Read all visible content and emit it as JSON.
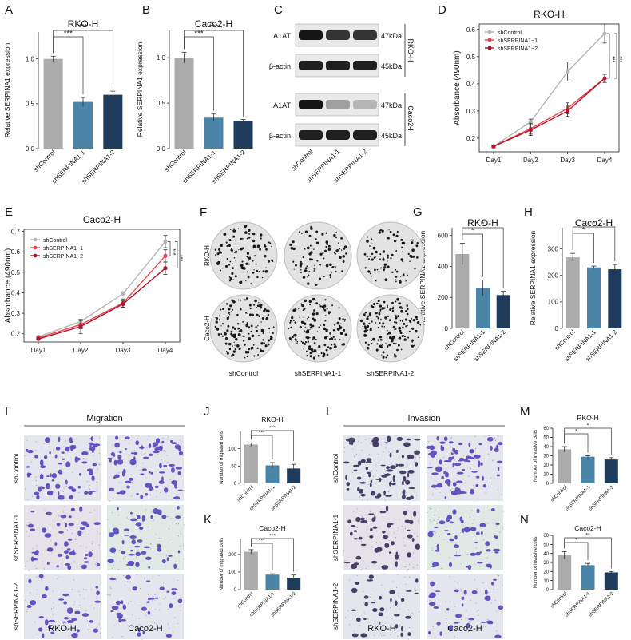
{
  "colors": {
    "shControl": "#ababab",
    "shSERPINA1_1": "#4a85a8",
    "shSERPINA1_2": "#1e3b5c",
    "line_ctrl": "#b5b5b5",
    "line_sh1": "#e8464f",
    "line_sh2": "#b0142c"
  },
  "panel_letters": [
    "A",
    "B",
    "C",
    "D",
    "E",
    "F",
    "G",
    "H",
    "I",
    "J",
    "K",
    "L",
    "M",
    "N"
  ],
  "groups": [
    "shControl",
    "shSERPINA1-1",
    "shSERPINA1-2"
  ],
  "western_blot": {
    "lanes": [
      "shControl",
      "shSERPINA1-1",
      "shSERPINA1-2"
    ],
    "rows": [
      {
        "label": "A1AT",
        "kda": "47kDa"
      },
      {
        "label": "β-actin",
        "kda": "45kDa"
      },
      {
        "label": "A1AT",
        "kda": "47kDa"
      },
      {
        "label": "β-actin",
        "kda": "45kDa"
      }
    ],
    "cell_labels": [
      "RKO-H",
      "Caco2-H"
    ],
    "band_intensity": [
      [
        1.0,
        0.85,
        0.85
      ],
      [
        0.95,
        0.95,
        0.95
      ],
      [
        1.0,
        0.35,
        0.25
      ],
      [
        0.95,
        0.95,
        0.95
      ]
    ]
  },
  "colony": {
    "rows": [
      "RKO-H",
      "Caco2-H"
    ],
    "cols": [
      "shControl",
      "shSERPINA1-1",
      "shSERPINA1-2"
    ]
  },
  "migration": {
    "title": "Migration",
    "rows": [
      "shControl",
      "shSERPINA1-1",
      "shSERPINA1-2"
    ],
    "cols": [
      "RKO-H",
      "Caco2-H"
    ]
  },
  "invasion": {
    "title": "Invasion",
    "rows": [
      "shControl",
      "shSERPINA1-1",
      "shSERPINA1-2"
    ],
    "cols": [
      "RKO-H",
      "Caco2-H"
    ]
  },
  "chart_data": [
    {
      "id": "A",
      "type": "bar",
      "title": "RKO-H",
      "ylabel": "Relative SERPINA1 expression",
      "categories": [
        "shControl",
        "shSERPINA1-1",
        "shSERPINA1-2"
      ],
      "values": [
        1.0,
        0.52,
        0.6
      ],
      "errors": [
        0.03,
        0.05,
        0.04
      ],
      "ylim": [
        0,
        1.3
      ],
      "yticks": [
        0.0,
        0.5,
        1.0
      ],
      "ytick_labels": [
        "0.0",
        "0.5",
        "1.0"
      ],
      "sig": [
        {
          "from": 0,
          "to": 1,
          "label": "***"
        },
        {
          "from": 0,
          "to": 2,
          "label": "***"
        }
      ]
    },
    {
      "id": "B",
      "type": "bar",
      "title": "Caco2-H",
      "ylabel": "Relative SERPINA1 expression",
      "categories": [
        "shControl",
        "shSERPINA1-1",
        "shSERPINA1-2"
      ],
      "values": [
        1.0,
        0.34,
        0.3
      ],
      "errors": [
        0.06,
        0.04,
        0.02
      ],
      "ylim": [
        0,
        1.3
      ],
      "yticks": [
        0.0,
        0.5,
        1.0
      ],
      "ytick_labels": [
        "0.0",
        "0.5",
        "1.0"
      ],
      "sig": [
        {
          "from": 0,
          "to": 1,
          "label": "***"
        },
        {
          "from": 0,
          "to": 2,
          "label": "***"
        }
      ]
    },
    {
      "id": "D",
      "type": "line",
      "title": "RKO-H",
      "ylabel": "Absorbance (490nm)",
      "x": [
        "Day1",
        "Day2",
        "Day3",
        "Day4"
      ],
      "series": [
        {
          "name": "shControl",
          "values": [
            0.17,
            0.26,
            0.445,
            0.585
          ],
          "errors": [
            0.005,
            0.01,
            0.035,
            0.035
          ]
        },
        {
          "name": "shSERPINA1−1",
          "values": [
            0.17,
            0.235,
            0.31,
            0.42
          ],
          "errors": [
            0.005,
            0.02,
            0.02,
            0.015
          ]
        },
        {
          "name": "shSERPINA1−2",
          "values": [
            0.17,
            0.23,
            0.3,
            0.42
          ],
          "errors": [
            0.005,
            0.02,
            0.02,
            0.015
          ]
        }
      ],
      "ylim": [
        0.15,
        0.62
      ],
      "yticks": [
        0.2,
        0.3,
        0.4,
        0.5,
        0.6
      ],
      "ytick_labels": [
        "0.2",
        "0.3",
        "0.4",
        "0.5",
        "0.6"
      ],
      "sig_labels": [
        "***",
        "***"
      ],
      "legend": "top-left"
    },
    {
      "id": "E",
      "type": "line",
      "title": "Caco2-H",
      "ylabel": "Absorbance (490nm)",
      "x": [
        "Day1",
        "Day2",
        "Day3",
        "Day4"
      ],
      "series": [
        {
          "name": "shControl",
          "values": [
            0.185,
            0.26,
            0.395,
            0.65
          ],
          "errors": [
            0.005,
            0.01,
            0.01,
            0.03
          ]
        },
        {
          "name": "shSERPINA1−1",
          "values": [
            0.18,
            0.245,
            0.35,
            0.58
          ],
          "errors": [
            0.005,
            0.02,
            0.02,
            0.03
          ]
        },
        {
          "name": "shSERPINA1−2",
          "values": [
            0.175,
            0.235,
            0.345,
            0.52
          ],
          "errors": [
            0.005,
            0.035,
            0.015,
            0.03
          ]
        }
      ],
      "ylim": [
        0.16,
        0.71
      ],
      "yticks": [
        0.2,
        0.3,
        0.4,
        0.5,
        0.6,
        0.7
      ],
      "ytick_labels": [
        "0.2",
        "0.3",
        "0.4",
        "0.5",
        "0.6",
        "0.7"
      ],
      "sig_labels": [
        "***",
        "***"
      ],
      "legend": "top-left"
    },
    {
      "id": "G",
      "type": "bar",
      "title": "RKO-H",
      "ylabel": "Relative SERPINA1 expression",
      "categories": [
        "shControl",
        "shSERPINA1-1",
        "shSERPINA1-2"
      ],
      "values": [
        480,
        262,
        215
      ],
      "errors": [
        70,
        50,
        25
      ],
      "ylim": [
        0,
        650
      ],
      "yticks": [
        0,
        200,
        400,
        600
      ],
      "ytick_labels": [
        "0",
        "200",
        "400",
        "600"
      ],
      "sig": [
        {
          "from": 0,
          "to": 1,
          "label": "*"
        },
        {
          "from": 0,
          "to": 2,
          "label": "*"
        }
      ]
    },
    {
      "id": "H",
      "type": "bar",
      "title": "Caco2-H",
      "ylabel": "Relative SERPINA1 expression",
      "categories": [
        "shControl",
        "shSERPINA1-1",
        "shSERPINA1-2"
      ],
      "values": [
        268,
        230,
        223
      ],
      "errors": [
        15,
        5,
        18
      ],
      "ylim": [
        0,
        380
      ],
      "yticks": [
        0,
        100,
        200,
        300
      ],
      "ytick_labels": [
        "0",
        "100",
        "200",
        "300"
      ],
      "sig": [
        {
          "from": 0,
          "to": 1,
          "label": "*"
        },
        {
          "from": 0,
          "to": 2,
          "label": "*"
        }
      ]
    },
    {
      "id": "J",
      "type": "bar",
      "title": "RKO-H",
      "ylabel": "Number of migrated cells",
      "categories": [
        "shControl",
        "shSERPINA1-1",
        "shSERPINA1-2"
      ],
      "values": [
        112,
        52,
        43
      ],
      "errors": [
        5,
        8,
        12
      ],
      "ylim": [
        0,
        150
      ],
      "yticks": [
        0,
        50,
        100
      ],
      "ytick_labels": [
        "0",
        "50",
        "100"
      ],
      "sig": [
        {
          "from": 0,
          "to": 1,
          "label": "***"
        },
        {
          "from": 0,
          "to": 2,
          "label": "***"
        }
      ]
    },
    {
      "id": "K",
      "type": "bar",
      "title": "Caco2-H",
      "ylabel": "Number of migrated cells",
      "categories": [
        "shControl",
        "shSERPINA1-1",
        "shSERPINA1-2"
      ],
      "values": [
        215,
        85,
        68
      ],
      "errors": [
        12,
        5,
        15
      ],
      "ylim": [
        0,
        290
      ],
      "yticks": [
        0,
        100,
        200
      ],
      "ytick_labels": [
        "0",
        "100",
        "200"
      ],
      "sig": [
        {
          "from": 0,
          "to": 1,
          "label": "***"
        },
        {
          "from": 0,
          "to": 2,
          "label": "***"
        }
      ]
    },
    {
      "id": "M",
      "type": "bar",
      "title": "RKO-H",
      "ylabel": "Number of invasive cells",
      "categories": [
        "shControl",
        "shSERPINA1-1",
        "shSERPINA1-2"
      ],
      "values": [
        37,
        29,
        26
      ],
      "errors": [
        3,
        1,
        2
      ],
      "ylim": [
        0,
        60
      ],
      "yticks": [
        0,
        10,
        20,
        30,
        40,
        50,
        60
      ],
      "ytick_labels": [
        "0",
        "10",
        "20",
        "30",
        "40",
        "50",
        "60"
      ],
      "sig": [
        {
          "from": 0,
          "to": 1,
          "label": "*"
        },
        {
          "from": 0,
          "to": 2,
          "label": "*"
        }
      ]
    },
    {
      "id": "N",
      "type": "bar",
      "title": "Caco2-H",
      "ylabel": "Number of invasive cells",
      "categories": [
        "shControl",
        "shSERPINA1-1",
        "shSERPINA1-2"
      ],
      "values": [
        38,
        27,
        19
      ],
      "errors": [
        4,
        2,
        1
      ],
      "ylim": [
        0,
        60
      ],
      "yticks": [
        0,
        10,
        20,
        30,
        40,
        50,
        60
      ],
      "ytick_labels": [
        "0",
        "10",
        "20",
        "30",
        "40",
        "50",
        "60"
      ],
      "sig": [
        {
          "from": 0,
          "to": 1,
          "label": "*"
        },
        {
          "from": 0,
          "to": 2,
          "label": "**"
        }
      ]
    }
  ]
}
